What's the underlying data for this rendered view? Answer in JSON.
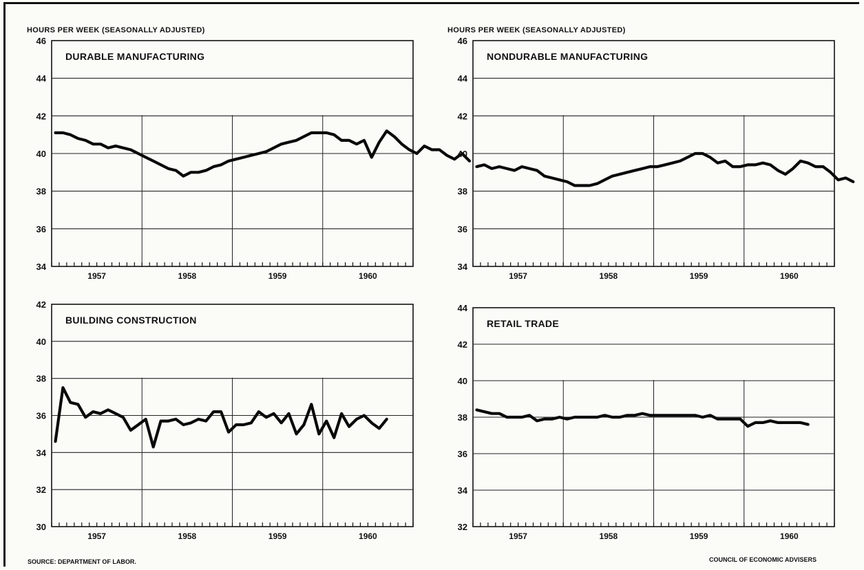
{
  "footer": {
    "source": "SOURCE: DEPARTMENT OF LABOR.",
    "credit": "COUNCIL OF ECONOMIC ADVISERS"
  },
  "chart_data": [
    {
      "type": "line",
      "title": "DURABLE MANUFACTURING",
      "ylabel": "HOURS PER WEEK (SEASONALLY ADJUSTED)",
      "xlabel": "",
      "ylim": [
        34,
        46
      ],
      "yticks": [
        34,
        36,
        38,
        40,
        42,
        44,
        46
      ],
      "years": [
        "1957",
        "1958",
        "1959",
        "1960"
      ],
      "grid": true,
      "series": [
        {
          "values": [
            41.1,
            41.1,
            41.0,
            40.8,
            40.7,
            40.5,
            40.5,
            40.3,
            40.4,
            40.3,
            40.2,
            40.0,
            39.8,
            39.6,
            39.4,
            39.2,
            39.1,
            38.8,
            39.0,
            39.0,
            39.1,
            39.3,
            39.4,
            39.6,
            39.7,
            39.8,
            39.9,
            40.0,
            40.1,
            40.3,
            40.5,
            40.6,
            40.7,
            40.9,
            41.1,
            41.1,
            41.1,
            41.0,
            40.7,
            40.7,
            40.5,
            40.7,
            39.8,
            40.6,
            41.2,
            40.9,
            40.5,
            40.2,
            40.0,
            40.4,
            40.2,
            40.2,
            39.9,
            39.7,
            40.0,
            39.6
          ]
        }
      ]
    },
    {
      "type": "line",
      "title": "NONDURABLE MANUFACTURING",
      "ylabel": "HOURS PER WEEK (SEASONALLY ADJUSTED)",
      "xlabel": "",
      "ylim": [
        34,
        46
      ],
      "yticks": [
        34,
        36,
        38,
        40,
        42,
        44,
        46
      ],
      "years": [
        "1957",
        "1958",
        "1959",
        "1960"
      ],
      "grid": true,
      "series": [
        {
          "values": [
            39.3,
            39.4,
            39.2,
            39.3,
            39.2,
            39.1,
            39.3,
            39.2,
            39.1,
            38.8,
            38.7,
            38.6,
            38.5,
            38.3,
            38.3,
            38.3,
            38.4,
            38.6,
            38.8,
            38.9,
            39.0,
            39.1,
            39.2,
            39.3,
            39.3,
            39.4,
            39.5,
            39.6,
            39.8,
            40.0,
            40.0,
            39.8,
            39.5,
            39.6,
            39.3,
            39.3,
            39.4,
            39.4,
            39.5,
            39.4,
            39.1,
            38.9,
            39.2,
            39.6,
            39.5,
            39.3,
            39.3,
            39.0,
            38.6,
            38.7,
            38.5
          ]
        }
      ]
    },
    {
      "type": "line",
      "title": "BUILDING CONSTRUCTION",
      "ylabel": "",
      "xlabel": "",
      "ylim": [
        30,
        42
      ],
      "yticks": [
        30,
        32,
        34,
        36,
        38,
        40,
        42
      ],
      "years": [
        "1957",
        "1958",
        "1959",
        "1960"
      ],
      "grid": true,
      "series": [
        {
          "values": [
            34.6,
            37.5,
            36.7,
            36.6,
            35.9,
            36.2,
            36.1,
            36.3,
            36.1,
            35.9,
            35.2,
            35.5,
            35.8,
            34.3,
            35.7,
            35.7,
            35.8,
            35.5,
            35.6,
            35.8,
            35.7,
            36.2,
            36.2,
            35.1,
            35.5,
            35.5,
            35.6,
            36.2,
            35.9,
            36.1,
            35.6,
            36.1,
            35.0,
            35.5,
            36.6,
            35.0,
            35.7,
            34.8,
            36.1,
            35.4,
            35.8,
            36.0,
            35.6,
            35.3,
            35.8
          ]
        }
      ]
    },
    {
      "type": "line",
      "title": "RETAIL TRADE",
      "ylabel": "",
      "xlabel": "",
      "ylim": [
        32,
        44
      ],
      "yticks": [
        32,
        34,
        36,
        38,
        40,
        42,
        44
      ],
      "years": [
        "1957",
        "1958",
        "1959",
        "1960"
      ],
      "grid": true,
      "series": [
        {
          "values": [
            38.4,
            38.3,
            38.2,
            38.2,
            38.0,
            38.0,
            38.0,
            38.1,
            37.8,
            37.9,
            37.9,
            38.0,
            37.9,
            38.0,
            38.0,
            38.0,
            38.0,
            38.1,
            38.0,
            38.0,
            38.1,
            38.1,
            38.2,
            38.1,
            38.1,
            38.1,
            38.1,
            38.1,
            38.1,
            38.1,
            38.0,
            38.1,
            37.9,
            37.9,
            37.9,
            37.9,
            37.5,
            37.7,
            37.7,
            37.8,
            37.7,
            37.7,
            37.7,
            37.7,
            37.6
          ]
        }
      ]
    }
  ]
}
